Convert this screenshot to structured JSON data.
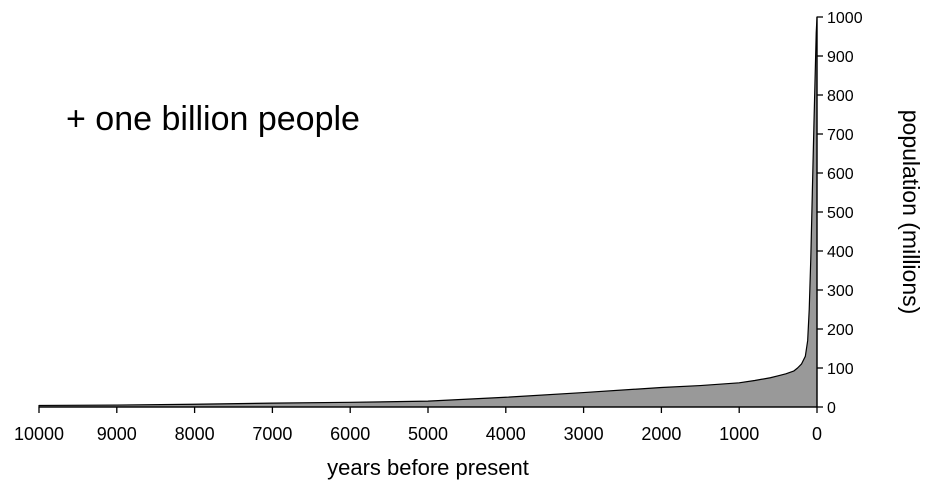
{
  "chart_data": {
    "type": "area",
    "title": "",
    "xlabel": "years before present",
    "ylabel": "population (millions)",
    "annotation": "+ one billion people",
    "x_reversed": true,
    "xlim": [
      10000,
      0
    ],
    "ylim": [
      0,
      1000
    ],
    "x_ticks": [
      10000,
      9000,
      8000,
      7000,
      6000,
      5000,
      4000,
      3000,
      2000,
      1000,
      0
    ],
    "y_ticks": [
      0,
      100,
      200,
      300,
      400,
      500,
      600,
      700,
      800,
      900,
      1000
    ],
    "y_axis_position": "right",
    "grid": false,
    "legend": "none",
    "fill_color": "#999999",
    "line_color": "#000000",
    "series": [
      {
        "x": [
          10000,
          9000,
          8000,
          7000,
          6000,
          5000,
          4000,
          3000,
          2000,
          1500,
          1000,
          800,
          600,
          500,
          400,
          300,
          250,
          200,
          150,
          120,
          100,
          80,
          60,
          40,
          20,
          10,
          0
        ],
        "values": [
          4,
          5,
          7,
          10,
          12,
          15,
          25,
          37,
          50,
          55,
          62,
          68,
          75,
          80,
          85,
          92,
          100,
          110,
          130,
          170,
          250,
          380,
          550,
          720,
          880,
          960,
          1000
        ]
      }
    ]
  }
}
